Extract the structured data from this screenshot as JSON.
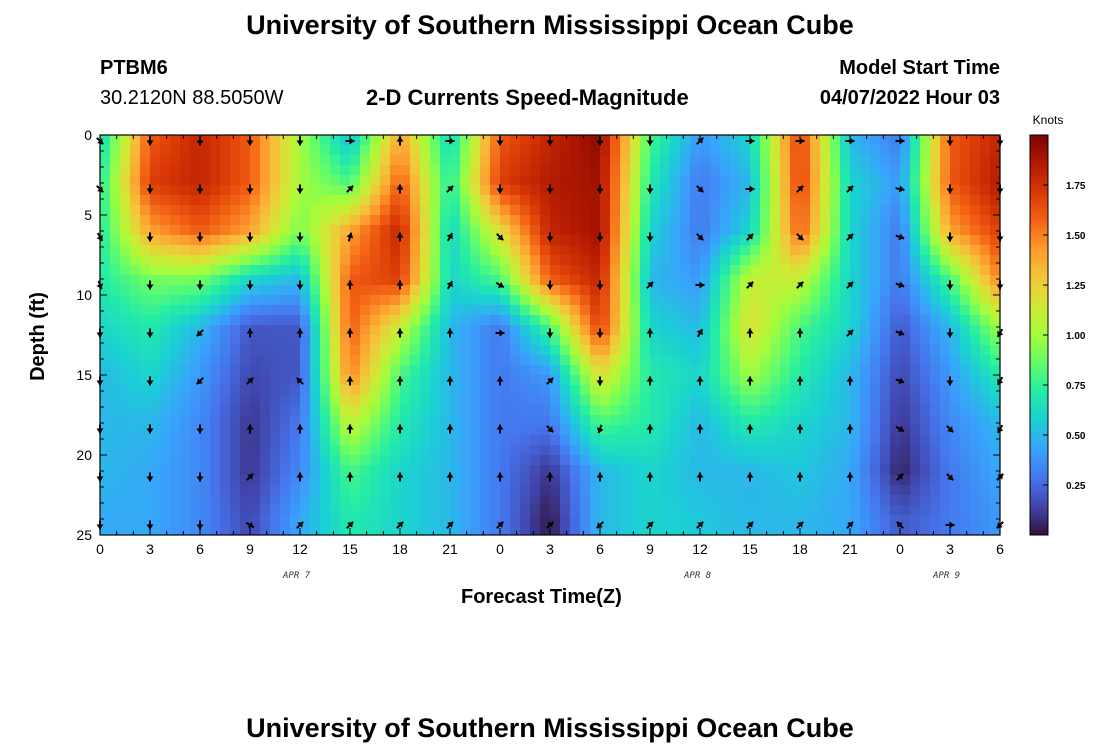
{
  "page": {
    "title_top": "University of Southern Mississippi Ocean Cube",
    "title_bottom": "University of Southern Mississippi Ocean Cube",
    "station": "PTBM6",
    "coords": "30.2120N  88.5050W",
    "plot_title": "2-D Currents Speed-Magnitude",
    "model_start_label": "Model Start Time",
    "model_start_value": "04/07/2022 Hour 03"
  },
  "colors": {
    "arrow": "#000000",
    "frame": "#000000",
    "colormap": [
      "#30123b",
      "#4145ab",
      "#4675ed",
      "#39a2fc",
      "#1bcfd4",
      "#24eca6",
      "#61fc6c",
      "#a4fc3b",
      "#d1e834",
      "#f3c63a",
      "#fe9b2d",
      "#f36315",
      "#d93806",
      "#b11901",
      "#7a0402"
    ]
  },
  "chart_data": {
    "type": "heatmap",
    "title": "2-D Currents Speed-Magnitude",
    "xlabel": "Forecast Time(Z)",
    "ylabel": "Depth (ft)",
    "x_tick_labels": [
      "0",
      "3",
      "6",
      "9",
      "12",
      "15",
      "18",
      "21",
      "0",
      "3",
      "6",
      "9",
      "12",
      "15",
      "18",
      "21",
      "0",
      "3",
      "6"
    ],
    "x_range_hours": [
      0,
      54
    ],
    "y_ticks": [
      0,
      5,
      10,
      15,
      20,
      25
    ],
    "y_range": [
      0,
      25
    ],
    "date_labels": [
      {
        "label": "APR 7",
        "hour": 11
      },
      {
        "label": "APR 8",
        "hour": 35
      },
      {
        "label": "APR 9",
        "hour": 50
      }
    ],
    "colorbar": {
      "label": "Knots",
      "range": [
        0,
        2.0
      ],
      "ticks": [
        "0.25",
        "0.50",
        "0.75",
        "1.00",
        "1.25",
        "1.50",
        "1.75"
      ],
      "tick_values": [
        0.25,
        0.5,
        0.75,
        1.0,
        1.25,
        1.5,
        1.75
      ]
    },
    "hours": [
      0,
      3,
      6,
      9,
      12,
      15,
      18,
      21,
      24,
      27,
      30,
      33,
      36,
      39,
      42,
      45,
      48,
      51,
      54
    ],
    "depths": [
      0,
      3,
      6,
      9,
      12,
      15,
      18,
      21,
      24
    ],
    "speed": [
      [
        0.6,
        1.6,
        1.8,
        1.6,
        1.0,
        0.5,
        1.4,
        0.6,
        1.6,
        1.8,
        1.95,
        0.8,
        0.4,
        0.6,
        1.7,
        0.5,
        0.3,
        1.6,
        1.8
      ],
      [
        0.7,
        1.7,
        1.8,
        1.6,
        1.0,
        0.8,
        1.6,
        0.7,
        1.7,
        1.85,
        1.9,
        0.7,
        0.3,
        0.5,
        1.7,
        0.6,
        0.4,
        1.6,
        1.85
      ],
      [
        0.7,
        1.4,
        1.6,
        1.4,
        0.9,
        1.4,
        1.8,
        0.6,
        1.2,
        1.8,
        1.9,
        0.6,
        0.3,
        0.6,
        1.6,
        0.6,
        0.3,
        1.4,
        1.7
      ],
      [
        0.7,
        0.9,
        0.9,
        0.6,
        0.5,
        1.6,
        1.7,
        0.6,
        0.8,
        1.6,
        1.8,
        0.5,
        0.4,
        1.1,
        1.1,
        0.6,
        0.3,
        0.8,
        1.5
      ],
      [
        0.6,
        0.7,
        0.5,
        0.2,
        0.2,
        1.6,
        1.1,
        0.5,
        0.3,
        0.8,
        1.7,
        0.6,
        0.5,
        1.2,
        0.8,
        0.6,
        0.2,
        0.5,
        1.0
      ],
      [
        0.5,
        0.6,
        0.4,
        0.15,
        0.2,
        1.5,
        0.8,
        0.5,
        0.3,
        0.4,
        1.2,
        0.7,
        0.6,
        1.0,
        0.7,
        0.5,
        0.15,
        0.4,
        0.7
      ],
      [
        0.5,
        0.5,
        0.35,
        0.1,
        0.3,
        1.1,
        0.7,
        0.5,
        0.3,
        0.3,
        0.8,
        0.7,
        0.5,
        0.7,
        0.6,
        0.5,
        0.1,
        0.35,
        0.5
      ],
      [
        0.5,
        0.45,
        0.35,
        0.1,
        0.35,
        0.8,
        0.6,
        0.5,
        0.3,
        0.1,
        0.5,
        0.6,
        0.5,
        0.5,
        0.55,
        0.45,
        0.05,
        0.3,
        0.45
      ],
      [
        0.45,
        0.45,
        0.35,
        0.15,
        0.45,
        0.7,
        0.6,
        0.5,
        0.3,
        0.02,
        0.5,
        0.6,
        0.55,
        0.5,
        0.5,
        0.45,
        0.2,
        0.3,
        0.4
      ]
    ],
    "direction_deg": [
      [
        135,
        180,
        180,
        180,
        180,
        90,
        0,
        90,
        180,
        180,
        180,
        180,
        45,
        90,
        90,
        90,
        90,
        180,
        180
      ],
      [
        135,
        180,
        180,
        180,
        180,
        45,
        0,
        45,
        180,
        180,
        180,
        180,
        135,
        90,
        45,
        45,
        100,
        180,
        180
      ],
      [
        150,
        180,
        180,
        180,
        180,
        15,
        0,
        30,
        135,
        180,
        180,
        180,
        135,
        45,
        135,
        45,
        110,
        180,
        180
      ],
      [
        160,
        180,
        180,
        180,
        180,
        0,
        0,
        30,
        120,
        180,
        180,
        45,
        90,
        45,
        45,
        45,
        110,
        180,
        180
      ],
      [
        180,
        180,
        225,
        0,
        0,
        0,
        0,
        0,
        90,
        180,
        180,
        0,
        30,
        0,
        0,
        45,
        110,
        180,
        210
      ],
      [
        180,
        180,
        225,
        45,
        315,
        0,
        0,
        0,
        0,
        45,
        180,
        0,
        0,
        0,
        0,
        0,
        110,
        180,
        210
      ],
      [
        180,
        180,
        180,
        0,
        0,
        0,
        0,
        0,
        0,
        135,
        200,
        0,
        0,
        0,
        0,
        0,
        120,
        135,
        210
      ],
      [
        180,
        180,
        180,
        45,
        0,
        0,
        0,
        0,
        0,
        0,
        0,
        0,
        0,
        0,
        0,
        0,
        45,
        135,
        45
      ],
      [
        180,
        180,
        180,
        120,
        45,
        45,
        45,
        45,
        45,
        45,
        225,
        45,
        45,
        45,
        45,
        45,
        315,
        90,
        225
      ]
    ]
  }
}
